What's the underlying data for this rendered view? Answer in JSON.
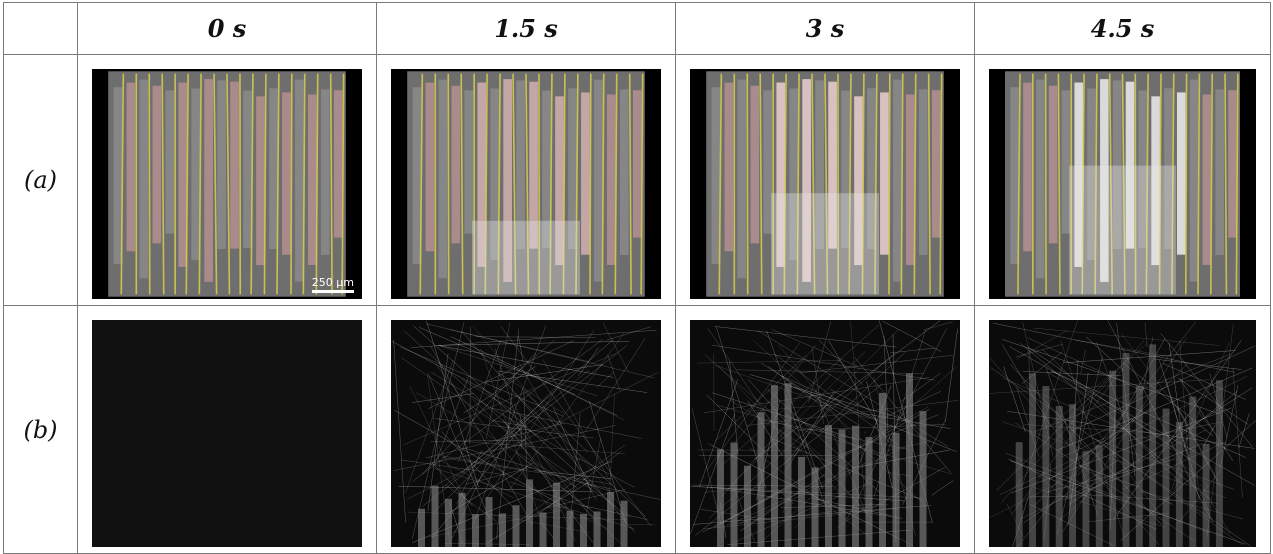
{
  "columns": [
    "0 s",
    "1.5 s",
    "3 s",
    "4.5 s"
  ],
  "rows": [
    {
      "label": "(a)"
    },
    {
      "label": "(b)"
    }
  ],
  "scale_bar": "250 µm"
}
